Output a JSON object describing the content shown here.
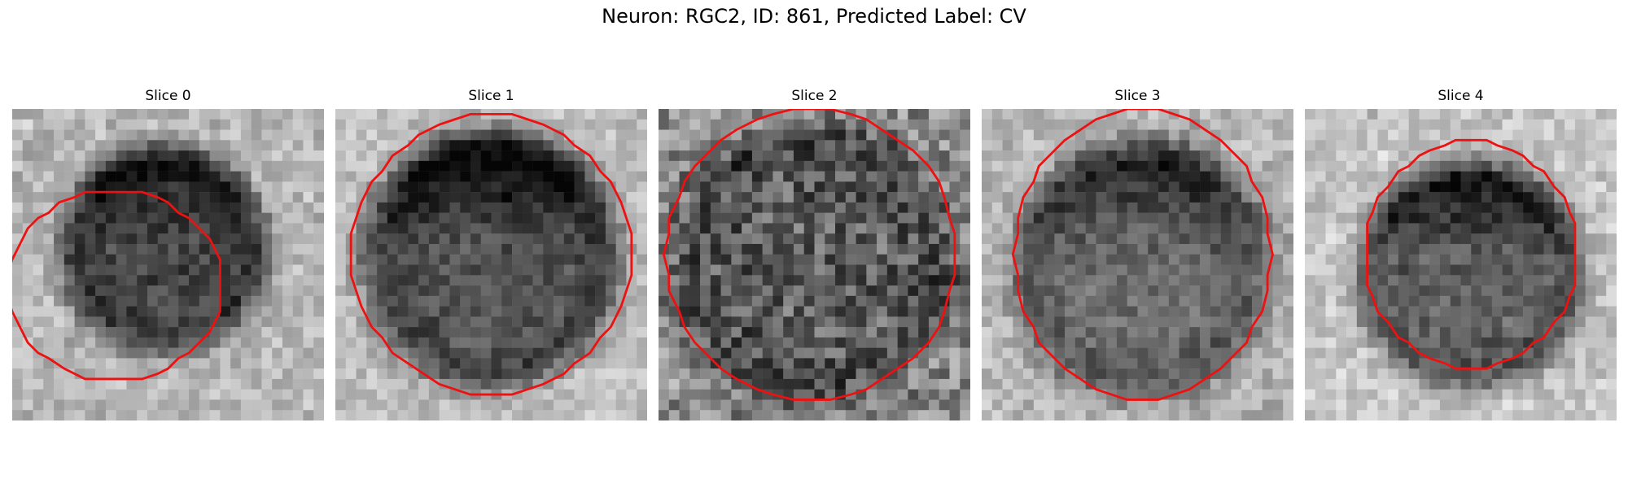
{
  "figure": {
    "title": "Neuron: RGC2, ID: 861, Predicted Label: CV"
  },
  "slices": [
    {
      "label": "Slice 0",
      "contour_color": "#ee1111"
    },
    {
      "label": "Slice 1",
      "contour_color": "#ee1111"
    },
    {
      "label": "Slice 2",
      "contour_color": "#ee1111"
    },
    {
      "label": "Slice 3",
      "contour_color": "#ee1111"
    },
    {
      "label": "Slice 4",
      "contour_color": "#ee1111"
    }
  ],
  "colors": {
    "contour": "#ee1111",
    "background": "#ffffff"
  }
}
